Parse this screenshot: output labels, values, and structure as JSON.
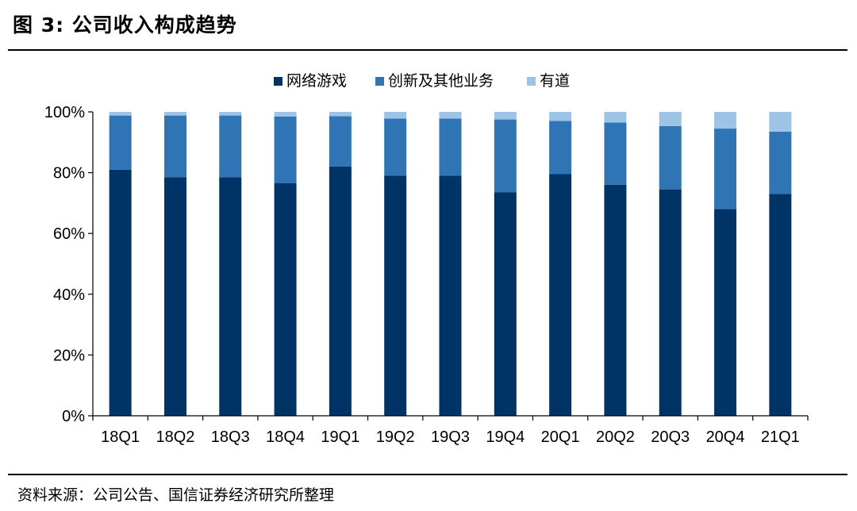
{
  "header": {
    "title": "图 3:  公司收入构成趋势"
  },
  "footer": {
    "source": "资料来源：公司公告、国信证券经济研究所整理"
  },
  "chart_data": {
    "type": "bar",
    "stacked": true,
    "categories": [
      "18Q1",
      "18Q2",
      "18Q3",
      "18Q4",
      "19Q1",
      "19Q2",
      "19Q3",
      "19Q4",
      "20Q1",
      "20Q2",
      "20Q3",
      "20Q4",
      "21Q1"
    ],
    "series": [
      {
        "name": "网络游戏",
        "color": "#003366",
        "values": [
          81.0,
          78.5,
          78.5,
          76.5,
          82.0,
          79.0,
          79.0,
          73.5,
          79.5,
          76.0,
          74.5,
          68.0,
          73.0
        ]
      },
      {
        "name": "创新及其他业务",
        "color": "#2f75b5",
        "values": [
          17.8,
          20.3,
          20.3,
          22.0,
          16.6,
          18.8,
          18.8,
          24.0,
          17.5,
          20.5,
          20.8,
          26.5,
          20.5
        ]
      },
      {
        "name": "有道",
        "color": "#9dc3e6",
        "values": [
          1.2,
          1.2,
          1.2,
          1.5,
          1.4,
          2.2,
          2.2,
          2.5,
          3.0,
          3.5,
          4.7,
          5.5,
          6.5
        ]
      }
    ],
    "ylim": [
      0,
      100
    ],
    "yticks": [
      "0%",
      "20%",
      "40%",
      "60%",
      "80%",
      "100%"
    ],
    "ytick_values": [
      0,
      20,
      40,
      60,
      80,
      100
    ],
    "legend_position": "top-center",
    "grid": false,
    "title": "",
    "xlabel": "",
    "ylabel": ""
  }
}
